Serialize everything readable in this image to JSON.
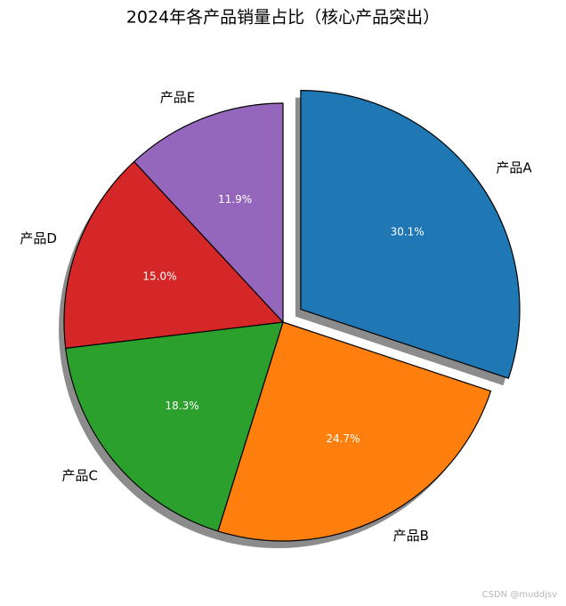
{
  "chart_data": {
    "type": "pie",
    "title": "2024年各产品销量占比（核心产品突出）",
    "categories": [
      "产品A",
      "产品B",
      "产品C",
      "产品D",
      "产品E"
    ],
    "values": [
      30.1,
      24.7,
      18.3,
      15.0,
      11.9
    ],
    "value_labels": [
      "30.1%",
      "24.7%",
      "18.3%",
      "15.0%",
      "11.9%"
    ],
    "colors": [
      "#1f77b4",
      "#ff7f0e",
      "#2ca02c",
      "#d62728",
      "#9467bd"
    ],
    "explode": [
      0.1,
      0,
      0,
      0,
      0
    ],
    "start_angle": 90,
    "clockwise": true,
    "shadow": true
  },
  "watermark": "CSDN @muddjsv"
}
